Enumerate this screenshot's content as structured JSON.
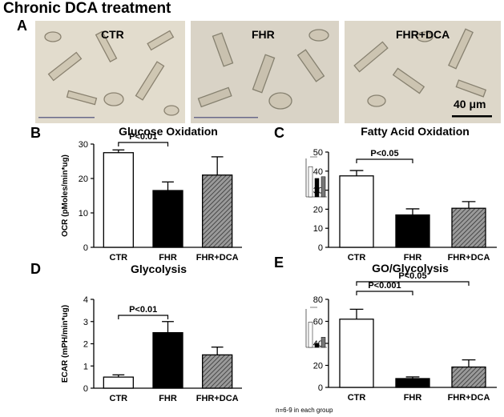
{
  "figure": {
    "title": "Chronic DCA treatment",
    "footnote": "n=6-9 in each group",
    "colors": {
      "ctr": "#ffffff",
      "fhr": "#000000",
      "fhrdca": "#7f7f7f",
      "stroke": "#000000",
      "photo_bg": "#d8d2c4"
    }
  },
  "panel_a": {
    "letter": "A",
    "images": [
      {
        "label": "CTR"
      },
      {
        "label": "FHR"
      },
      {
        "label": "FHR+DCA"
      }
    ],
    "scale_bar_label": "40 μm"
  },
  "panels": [
    {
      "id": "B",
      "letter": "B",
      "chart_data": {
        "type": "bar",
        "title": "Glucose Oxidation",
        "ylabel": "OCR (pMoles/min*ug)",
        "categories": [
          "CTR",
          "FHR",
          "FHR+DCA"
        ],
        "values": [
          27.5,
          16.5,
          21
        ],
        "errors": [
          0.8,
          2.5,
          5.3
        ],
        "ylim": [
          0,
          30
        ],
        "yticks": [
          0,
          10,
          20,
          30
        ],
        "annotations": [
          {
            "text": "P<0.01",
            "from": 0,
            "to": 1
          }
        ]
      }
    },
    {
      "id": "C",
      "letter": "C",
      "chart_data": {
        "type": "bar",
        "title": "Fatty Acid Oxidation",
        "ylabel": "",
        "categories": [
          "CTR",
          "FHR",
          "FHR+DCA"
        ],
        "values": [
          37.5,
          17,
          20.5
        ],
        "errors": [
          2.8,
          3.2,
          3.5
        ],
        "ylim": [
          0,
          50
        ],
        "yticks": [
          0,
          10,
          20,
          30,
          40,
          50
        ],
        "annotations": [
          {
            "text": "P<0.05",
            "from": 0,
            "to": 1
          }
        ],
        "inset": true
      }
    },
    {
      "id": "D",
      "letter": "D",
      "chart_data": {
        "type": "bar",
        "title": "Glycolysis",
        "ylabel": "ECAR (mPH/min*ug)",
        "categories": [
          "CTR",
          "FHR",
          "FHR+DCA"
        ],
        "values": [
          0.5,
          2.5,
          1.5
        ],
        "errors": [
          0.1,
          0.5,
          0.35
        ],
        "ylim": [
          0,
          4
        ],
        "yticks": [
          0,
          1,
          2,
          3,
          4
        ],
        "annotations": [
          {
            "text": "P<0.01",
            "from": 0,
            "to": 1
          }
        ]
      }
    },
    {
      "id": "E",
      "letter": "E",
      "chart_data": {
        "type": "bar",
        "title": "GO/Glycolysis",
        "ylabel": "",
        "categories": [
          "CTR",
          "FHR",
          "FHR+DCA"
        ],
        "values": [
          62,
          8,
          18.5
        ],
        "errors": [
          9,
          1.5,
          6.5
        ],
        "ylim": [
          0,
          80
        ],
        "yticks": [
          0,
          20,
          40,
          60,
          80
        ],
        "annotations": [
          {
            "text": "P<0.001",
            "from": 0,
            "to": 1
          },
          {
            "text": "P<0.05",
            "from": 0,
            "to": 2
          }
        ],
        "inset": true
      }
    }
  ]
}
